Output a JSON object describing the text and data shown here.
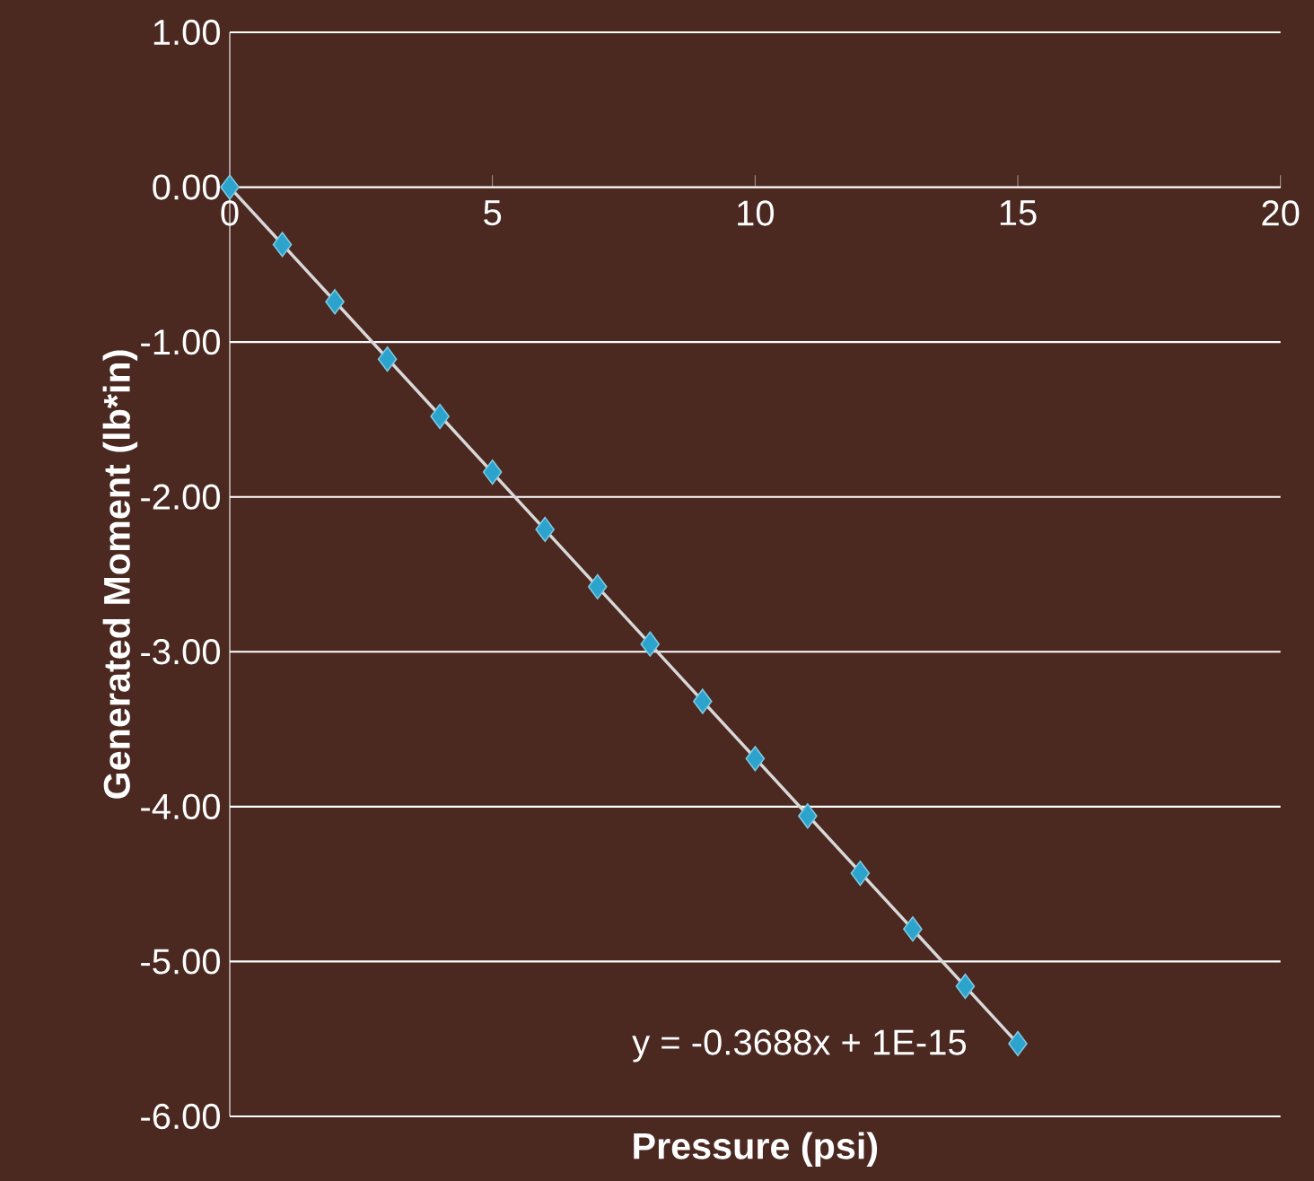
{
  "chart_data": {
    "type": "scatter",
    "xlabel": "Pressure (psi)",
    "ylabel": "Generated Moment (lb*in)",
    "series": [
      {
        "color": "#2ba3cc",
        "x": [
          0,
          1,
          2,
          3,
          4,
          5,
          6,
          7,
          8,
          9,
          10,
          11,
          12,
          13,
          14,
          15
        ],
        "values": [
          0,
          -0.37,
          -0.74,
          -1.11,
          -1.48,
          -1.84,
          -2.21,
          -2.58,
          -2.95,
          -3.32,
          -3.69,
          -4.06,
          -4.43,
          -4.79,
          -5.16,
          -5.53
        ]
      },
      {
        "type": "line",
        "color": "#d9d9d9",
        "x": [
          0,
          15
        ],
        "values": [
          0,
          -5.53
        ],
        "marker": "none"
      }
    ],
    "marker": "diamond",
    "grid": "y",
    "xlim": [
      0,
      20
    ],
    "xticks": [
      0,
      5,
      10,
      15,
      20
    ],
    "ylim": [
      -6,
      1
    ],
    "yticks": [
      {
        "value": -6,
        "label": "-6.00"
      },
      {
        "value": -5,
        "label": "-5.00"
      },
      {
        "value": -4,
        "label": "-4.00"
      },
      {
        "value": -3,
        "label": "-3.00"
      },
      {
        "value": -2,
        "label": "-2.00"
      },
      {
        "value": -1,
        "label": "-1.00"
      },
      {
        "value": 0,
        "label": "0.00"
      },
      {
        "value": 1,
        "label": "1.00"
      }
    ],
    "annotations": [
      "y = -0.3688x + 1E-15"
    ]
  }
}
